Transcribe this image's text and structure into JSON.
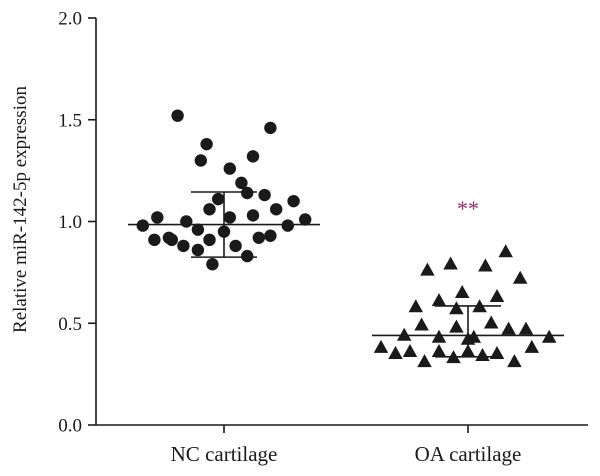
{
  "chart_data": {
    "type": "scatter",
    "ylabel": "Relative miR-142-5p expression",
    "ylim": [
      0,
      2
    ],
    "yticks": [
      "0.0",
      "0.5",
      "1.0",
      "1.5",
      "2.0"
    ],
    "categories": [
      "NC cartilage",
      "OA cartilage"
    ],
    "series": [
      {
        "marker": "circle",
        "color": "#1a1a1a",
        "mean": 0.985,
        "sd_upper": 1.145,
        "sd_lower": 0.825,
        "points": [
          [
            -0.28,
            0.98
          ],
          [
            -0.23,
            1.02
          ],
          [
            -0.18,
            0.91
          ],
          [
            -0.13,
            1.0
          ],
          [
            -0.09,
            0.96
          ],
          [
            -0.05,
            1.06
          ],
          [
            -0.02,
            1.11
          ],
          [
            0.02,
            1.02
          ],
          [
            0.06,
            1.19
          ],
          [
            0.1,
            1.03
          ],
          [
            0.14,
            1.13
          ],
          [
            0.18,
            1.06
          ],
          [
            0.24,
            1.1
          ],
          [
            0.28,
            1.01
          ],
          [
            -0.24,
            0.91
          ],
          [
            -0.19,
            0.92
          ],
          [
            -0.14,
            0.88
          ],
          [
            -0.09,
            0.86
          ],
          [
            -0.05,
            0.91
          ],
          [
            0.0,
            0.95
          ],
          [
            0.04,
            0.88
          ],
          [
            0.08,
            0.83
          ],
          [
            0.12,
            0.92
          ],
          [
            0.16,
            0.93
          ],
          [
            -0.08,
            1.3
          ],
          [
            0.02,
            1.26
          ],
          [
            0.1,
            1.32
          ],
          [
            0.16,
            1.46
          ],
          [
            -0.06,
            1.38
          ],
          [
            -0.16,
            1.52
          ],
          [
            -0.04,
            0.79
          ],
          [
            0.08,
            1.14
          ],
          [
            0.22,
            0.98
          ]
        ]
      },
      {
        "marker": "triangle",
        "color": "#1a1a1a",
        "mean": 0.44,
        "sd_upper": 0.585,
        "sd_lower": 0.335,
        "significance": "**",
        "significance_color": "#9b2d6e",
        "points": [
          [
            -0.3,
            0.38
          ],
          [
            -0.25,
            0.35
          ],
          [
            -0.2,
            0.36
          ],
          [
            -0.15,
            0.31
          ],
          [
            -0.1,
            0.36
          ],
          [
            -0.05,
            0.33
          ],
          [
            0.0,
            0.36
          ],
          [
            0.05,
            0.34
          ],
          [
            0.1,
            0.35
          ],
          [
            0.16,
            0.31
          ],
          [
            0.22,
            0.38
          ],
          [
            0.28,
            0.43
          ],
          [
            -0.22,
            0.44
          ],
          [
            -0.16,
            0.49
          ],
          [
            -0.1,
            0.43
          ],
          [
            -0.04,
            0.48
          ],
          [
            0.02,
            0.43
          ],
          [
            0.08,
            0.5
          ],
          [
            0.14,
            0.47
          ],
          [
            0.2,
            0.47
          ],
          [
            -0.18,
            0.58
          ],
          [
            -0.1,
            0.61
          ],
          [
            -0.04,
            0.57
          ],
          [
            0.04,
            0.58
          ],
          [
            0.1,
            0.63
          ],
          [
            0.18,
            0.72
          ],
          [
            -0.14,
            0.76
          ],
          [
            -0.06,
            0.79
          ],
          [
            0.06,
            0.78
          ],
          [
            0.13,
            0.85
          ],
          [
            -0.02,
            0.65
          ],
          [
            0.0,
            0.42
          ]
        ]
      }
    ]
  }
}
